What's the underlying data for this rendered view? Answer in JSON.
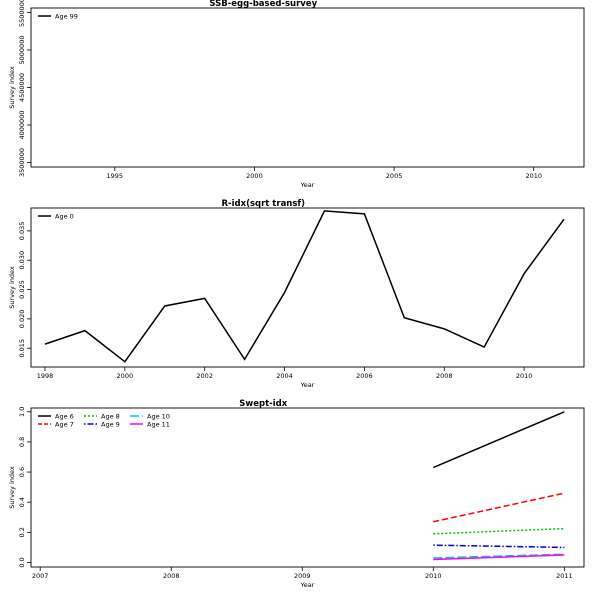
{
  "chart_data": [
    {
      "type": "line",
      "title": "SSB-egg-based-survey",
      "xlabel": "Year",
      "ylabel": "Survey index",
      "xlim": [
        1992,
        2011.8
      ],
      "ylim": [
        3440000,
        5560000
      ],
      "xticks": [
        "1995",
        "2000",
        "2005",
        "2010"
      ],
      "yticks": [
        "3500000",
        "4000000",
        "4500000",
        "5000000",
        "5500000"
      ],
      "legend_position": "top-left",
      "series": [
        {
          "name": "Age 99",
          "color": "#000000",
          "dash": "solid",
          "x": [],
          "y": []
        }
      ]
    },
    {
      "type": "line",
      "title": "R-idx(sqrt transf)",
      "xlabel": "Year",
      "ylabel": "Survey index",
      "xlim": [
        1997.65,
        2011.5
      ],
      "ylim": [
        0.0118,
        0.0389
      ],
      "xticks": [
        "1998",
        "2000",
        "2002",
        "2004",
        "2006",
        "2008",
        "2010"
      ],
      "yticks": [
        "0.015",
        "0.020",
        "0.025",
        "0.030",
        "0.035"
      ],
      "legend_position": "top-left",
      "series": [
        {
          "name": "Age 0",
          "color": "#000000",
          "dash": "solid",
          "x": [
            1998,
            1999,
            2000,
            2001,
            2002,
            2003,
            2004,
            2005,
            2006,
            2007,
            2008,
            2009,
            2010,
            2011
          ],
          "y": [
            0.0157,
            0.018,
            0.0127,
            0.0222,
            0.0235,
            0.0131,
            0.0245,
            0.0384,
            0.0379,
            0.0202,
            0.0183,
            0.0152,
            0.0277,
            0.037
          ]
        }
      ]
    },
    {
      "type": "line",
      "title": "Swept-idx",
      "xlabel": "Year",
      "ylabel": "Survey index",
      "xlim": [
        2006.93,
        2011.15
      ],
      "ylim": [
        -0.03,
        1.025
      ],
      "xticks": [
        "2007",
        "2008",
        "2009",
        "2010",
        "2011"
      ],
      "yticks": [
        "0.0",
        "0.2",
        "0.4",
        "0.6",
        "0.8",
        "1.0"
      ],
      "legend_position": "top-left",
      "series": [
        {
          "name": "Age 6",
          "color": "#000000",
          "dash": "solid",
          "x": [
            2010,
            2011
          ],
          "y": [
            0.63,
            1.0
          ]
        },
        {
          "name": "Age 7",
          "color": "#ff0000",
          "dash": "dashed",
          "x": [
            2010,
            2011
          ],
          "y": [
            0.27,
            0.46
          ]
        },
        {
          "name": "Age 8",
          "color": "#00bb00",
          "dash": "dotted",
          "x": [
            2010,
            2011
          ],
          "y": [
            0.19,
            0.225
          ]
        },
        {
          "name": "Age 9",
          "color": "#0000cc",
          "dash": "dotdash",
          "x": [
            2010,
            2011
          ],
          "y": [
            0.115,
            0.1
          ]
        },
        {
          "name": "Age 10",
          "color": "#00cccc",
          "dash": "longdash",
          "x": [
            2010,
            2011
          ],
          "y": [
            0.03,
            0.055
          ]
        },
        {
          "name": "Age 11",
          "color": "#ff00ff",
          "dash": "solid",
          "x": [
            2010,
            2011
          ],
          "y": [
            0.02,
            0.05
          ]
        }
      ]
    }
  ]
}
